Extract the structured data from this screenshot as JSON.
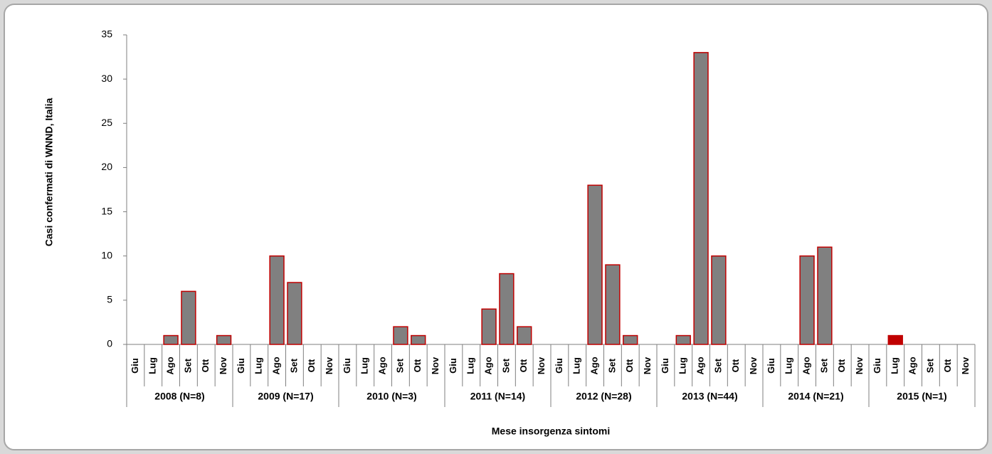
{
  "chart_data": {
    "type": "bar",
    "y_label": "Casi confermati di WNND, Italia",
    "x_label": "Mese insorgenza sintomi",
    "groups": [
      "2008 (N=8)",
      "2009 (N=17)",
      "2010 (N=3)",
      "2011 (N=14)",
      "2012 (N=28)",
      "2013 (N=44)",
      "2014 (N=21)",
      "2015 (N=1)"
    ],
    "categories": [
      "Giu",
      "Lug",
      "Ago",
      "Set",
      "Ott",
      "Nov",
      "Giu",
      "Lug",
      "Ago",
      "Set",
      "Ott",
      "Nov",
      "Giu",
      "Lug",
      "Ago",
      "Set",
      "Ott",
      "Nov",
      "Giu",
      "Lug",
      "Ago",
      "Set",
      "Ott",
      "Nov",
      "Giu",
      "Lug",
      "Ago",
      "Set",
      "Ott",
      "Nov",
      "Giu",
      "Lug",
      "Ago",
      "Set",
      "Ott",
      "Nov",
      "Giu",
      "Lug",
      "Ago",
      "Set",
      "Ott",
      "Nov",
      "Giu",
      "Lug",
      "Ago",
      "Set",
      "Ott",
      "Nov"
    ],
    "values": [
      0,
      0,
      1,
      6,
      0,
      1,
      0,
      0,
      10,
      7,
      0,
      0,
      0,
      0,
      0,
      2,
      1,
      0,
      0,
      0,
      4,
      8,
      2,
      0,
      0,
      0,
      18,
      9,
      1,
      0,
      0,
      1,
      33,
      10,
      0,
      0,
      0,
      0,
      10,
      11,
      0,
      0,
      0,
      1,
      0,
      0,
      0,
      0
    ],
    "bar_colors": [
      "#808080",
      "#808080",
      "#808080",
      "#808080",
      "#808080",
      "#808080",
      "#808080",
      "#808080",
      "#808080",
      "#808080",
      "#808080",
      "#808080",
      "#808080",
      "#808080",
      "#808080",
      "#808080",
      "#808080",
      "#808080",
      "#808080",
      "#808080",
      "#808080",
      "#808080",
      "#808080",
      "#808080",
      "#808080",
      "#808080",
      "#808080",
      "#808080",
      "#808080",
      "#808080",
      "#808080",
      "#808080",
      "#808080",
      "#808080",
      "#808080",
      "#808080",
      "#808080",
      "#808080",
      "#808080",
      "#808080",
      "#808080",
      "#808080",
      "#808080",
      "#c00000",
      "#808080",
      "#808080",
      "#808080",
      "#808080"
    ],
    "edge_color": "#c00000",
    "ylim": [
      0,
      35
    ],
    "yticks": [
      0,
      5,
      10,
      15,
      20,
      25,
      30,
      35
    ],
    "grid": false
  }
}
